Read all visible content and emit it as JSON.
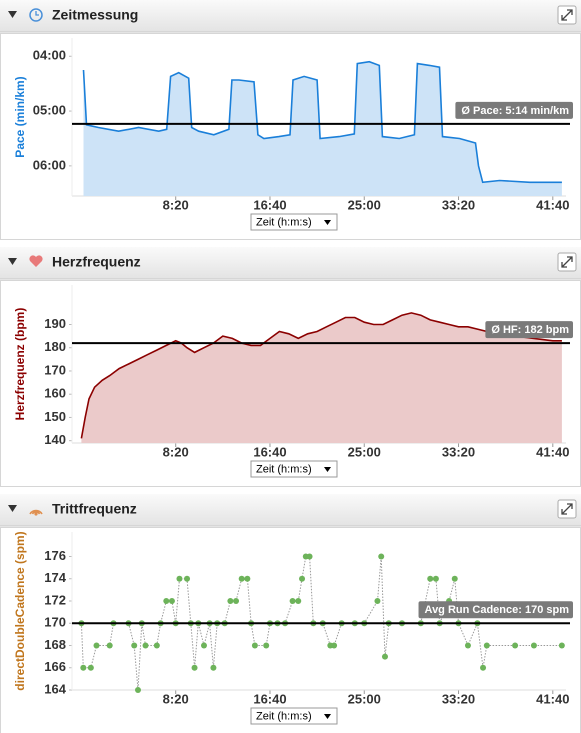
{
  "chart_data": [
    {
      "type": "area",
      "title": "Zeitmessung",
      "y_label": "Pace (min/km)",
      "x_label": "Zeit (h:m:s)",
      "color": "#1a7fd9",
      "fill_color": "#cde3f7",
      "x": [
        11,
        27,
        90,
        197,
        303,
        410,
        452,
        473,
        516,
        569,
        585,
        622,
        702,
        782,
        798,
        835,
        915,
        936,
        968,
        1048,
        1106,
        1122,
        1181,
        1250,
        1266,
        1367,
        1447,
        1463,
        1527,
        1580,
        1596,
        1686,
        1766,
        1782,
        1846,
        1899,
        1915,
        2005,
        2090,
        2106,
        2128,
        2218,
        2378,
        2548
      ],
      "values": [
        255,
        315,
        318,
        322,
        318,
        322,
        320,
        262,
        258,
        264,
        318,
        322,
        326,
        320,
        266,
        266,
        268,
        326,
        330,
        328,
        326,
        266,
        262,
        266,
        330,
        328,
        325,
        248,
        246,
        250,
        328,
        330,
        326,
        248,
        250,
        252,
        328,
        330,
        335,
        360,
        378,
        376,
        378,
        378
      ],
      "xlim": [
        -50,
        2570
      ],
      "ylim": [
        393,
        220
      ],
      "xticks": [
        {
          "value": 500,
          "label": "8:20"
        },
        {
          "value": 1000,
          "label": "16:40"
        },
        {
          "value": 1500,
          "label": "25:00"
        },
        {
          "value": 2000,
          "label": "33:20"
        },
        {
          "value": 2500,
          "label": "41:40"
        }
      ],
      "yticks": [
        {
          "value": 240,
          "label": "04:00"
        },
        {
          "value": 300,
          "label": "05:00"
        },
        {
          "value": 360,
          "label": "06:00"
        }
      ],
      "reference_line": {
        "value": 314,
        "label": "Ø Pace: 5:14 min/km"
      }
    },
    {
      "type": "area",
      "title": "Herzfrequenz",
      "y_label": "Herzfrequenz (bpm)",
      "x_label": "Zeit (h:m:s)",
      "color": "#8b0000",
      "fill_color": "#ebcaca",
      "x": [
        0,
        20,
        40,
        70,
        110,
        150,
        200,
        250,
        300,
        350,
        400,
        450,
        500,
        530,
        560,
        600,
        650,
        700,
        750,
        800,
        850,
        900,
        950,
        1000,
        1050,
        1100,
        1150,
        1200,
        1250,
        1300,
        1350,
        1400,
        1450,
        1500,
        1550,
        1600,
        1650,
        1700,
        1750,
        1800,
        1850,
        1900,
        1950,
        2000,
        2050,
        2100,
        2200,
        2300,
        2400,
        2500,
        2548
      ],
      "values": [
        141,
        150,
        158,
        163,
        166,
        168,
        171,
        173,
        175,
        177,
        179,
        181,
        183,
        182,
        180,
        178,
        180,
        182,
        185,
        184,
        182,
        181,
        181,
        184,
        187,
        186,
        184,
        186,
        187,
        189,
        191,
        193,
        193,
        191,
        190,
        190,
        192,
        194,
        195,
        194,
        192,
        191,
        190,
        189,
        189,
        188,
        186,
        185,
        184,
        183,
        183
      ],
      "xlim": [
        -50,
        2570
      ],
      "ylim": [
        139,
        207
      ],
      "xticks": [
        {
          "value": 500,
          "label": "8:20"
        },
        {
          "value": 1000,
          "label": "16:40"
        },
        {
          "value": 1500,
          "label": "25:00"
        },
        {
          "value": 2000,
          "label": "33:20"
        },
        {
          "value": 2500,
          "label": "41:40"
        }
      ],
      "yticks": [
        140,
        150,
        160,
        170,
        180,
        190
      ],
      "reference_line": {
        "value": 182,
        "label": "Ø HF: 182 bpm"
      }
    },
    {
      "type": "dots",
      "title": "Trittfrequenz",
      "y_label": "directDoubleCadence (spm)",
      "x_label": "Zeit (h:m:s)",
      "color": "#6db35a",
      "x": [
        0,
        10,
        50,
        80,
        150,
        170,
        250,
        280,
        300,
        320,
        340,
        400,
        420,
        450,
        480,
        500,
        520,
        560,
        580,
        600,
        620,
        650,
        680,
        700,
        720,
        760,
        790,
        820,
        850,
        880,
        900,
        920,
        980,
        1000,
        1040,
        1080,
        1120,
        1150,
        1170,
        1190,
        1210,
        1230,
        1280,
        1320,
        1340,
        1380,
        1450,
        1500,
        1570,
        1590,
        1610,
        1630,
        1700,
        1800,
        1850,
        1880,
        1900,
        1950,
        1980,
        2000,
        2050,
        2100,
        2130,
        2150,
        2300,
        2400,
        2548
      ],
      "values": [
        170,
        166,
        166,
        168,
        168,
        170,
        170,
        168,
        164,
        170,
        168,
        168,
        170,
        172,
        172,
        170,
        174,
        174,
        170,
        166,
        170,
        168,
        170,
        166,
        170,
        170,
        172,
        172,
        174,
        174,
        170,
        168,
        168,
        170,
        170,
        170,
        172,
        172,
        174,
        176,
        176,
        170,
        170,
        168,
        168,
        170,
        170,
        170,
        172,
        176,
        167,
        170,
        170,
        170,
        174,
        174,
        170,
        172,
        174,
        170,
        168,
        170,
        166,
        168,
        168,
        168,
        168
      ],
      "xlim": [
        -50,
        2570
      ],
      "ylim": [
        164,
        178.2
      ],
      "xticks": [
        {
          "value": 500,
          "label": "8:20"
        },
        {
          "value": 1000,
          "label": "16:40"
        },
        {
          "value": 1500,
          "label": "25:00"
        },
        {
          "value": 2000,
          "label": "33:20"
        },
        {
          "value": 2500,
          "label": "41:40"
        }
      ],
      "yticks": [
        164,
        166,
        168,
        170,
        172,
        174,
        176
      ],
      "reference_line": {
        "value": 170,
        "label": "Avg Run Cadence: 170 spm"
      }
    }
  ]
}
